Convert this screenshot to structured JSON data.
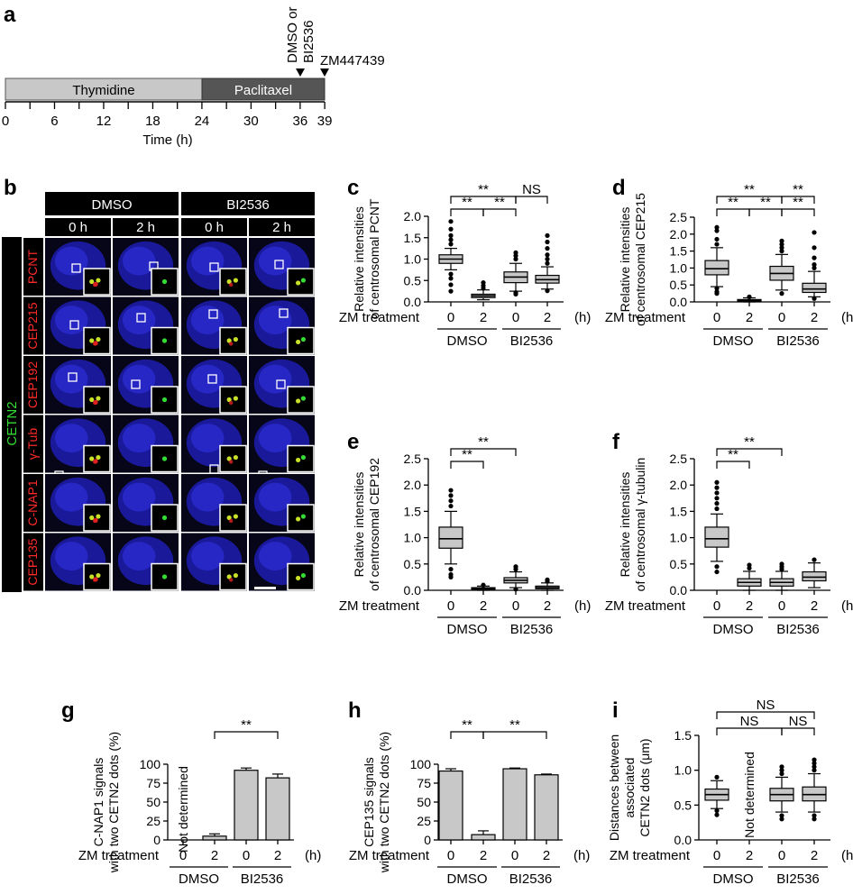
{
  "panel_letters": [
    "a",
    "b",
    "c",
    "d",
    "e",
    "f",
    "g",
    "h",
    "i"
  ],
  "timeline": {
    "bar1_label": "Thymidine",
    "bar2_label": "Paclitaxel",
    "ticks": [
      "0",
      "6",
      "12",
      "18",
      "24",
      "30",
      "36",
      "39"
    ],
    "tick_values": [
      0,
      6,
      12,
      18,
      24,
      30,
      36,
      39
    ],
    "xlabel": "Time (h)",
    "addition1": "DMSO or\nBI2536",
    "addition1_line1": "DMSO or",
    "addition1_line2": "BI2536",
    "addition2": "ZM447439",
    "colors": {
      "bar1": "#c8c8c8",
      "bar2": "#555555"
    }
  },
  "micro": {
    "groups": [
      "DMSO",
      "BI2536"
    ],
    "times": [
      "0 h",
      "2 h",
      "0 h",
      "2 h"
    ],
    "side_label": "CETN2",
    "rows": [
      "PCNT",
      "CEP215",
      "CEP192",
      "γ-Tub",
      "C-NAP1",
      "CEP135"
    ],
    "colors": {
      "nucleus": "#2323c8",
      "green": "#33dd33",
      "red": "#e02020",
      "label_red": "#ff2a2a"
    }
  },
  "common": {
    "xaxis_title": "ZM treatment",
    "x_unit": "(h)",
    "group_labels": [
      "DMSO",
      "BI2536"
    ],
    "x_ticks": [
      "0",
      "2",
      "0",
      "2"
    ]
  },
  "chart_data": [
    {
      "panel": "c",
      "type": "box",
      "ylabel1": "Relative intensities",
      "ylabel2": "of centrosomal PCNT",
      "ylim": [
        0,
        2.0
      ],
      "yticks": [
        "0.0",
        "0.5",
        "1.0",
        "1.5",
        "2.0"
      ],
      "ytick_values": [
        0,
        0.5,
        1.0,
        1.5,
        2.0
      ],
      "categories": [
        "0",
        "2",
        "0",
        "2"
      ],
      "boxes": [
        {
          "min": 0.75,
          "q1": 0.9,
          "median": 1.0,
          "q3": 1.1,
          "max": 1.25,
          "outliers": [
            0.25,
            0.4,
            0.55,
            0.65,
            1.35,
            1.45,
            1.55,
            1.7,
            1.88
          ]
        },
        {
          "min": 0.05,
          "q1": 0.1,
          "median": 0.14,
          "q3": 0.18,
          "max": 0.28,
          "outliers": [
            0.32,
            0.38,
            0.45
          ]
        },
        {
          "min": 0.25,
          "q1": 0.45,
          "median": 0.58,
          "q3": 0.7,
          "max": 0.9,
          "outliers": [
            0.18,
            0.22,
            1.0,
            1.08,
            1.15
          ]
        },
        {
          "min": 0.3,
          "q1": 0.44,
          "median": 0.52,
          "q3": 0.62,
          "max": 0.82,
          "outliers": [
            0.26,
            0.9,
            1.0,
            1.1,
            1.25,
            1.4,
            1.55
          ]
        }
      ],
      "sig": [
        {
          "a": 0,
          "b": 1,
          "label": "**",
          "level": 1
        },
        {
          "a": 1,
          "b": 2,
          "label": "**",
          "level": 1
        },
        {
          "a": 0,
          "b": 2,
          "label": "**",
          "level": 2
        },
        {
          "a": 2,
          "b": 3,
          "label": "NS",
          "level": 2
        }
      ]
    },
    {
      "panel": "d",
      "type": "box",
      "ylabel1": "Relative intensities",
      "ylabel2": "of centrosomal CEP215",
      "ylim": [
        0,
        2.5
      ],
      "yticks": [
        "0.0",
        "0.5",
        "1.0",
        "1.5",
        "2.0",
        "2.5"
      ],
      "ytick_values": [
        0,
        0.5,
        1.0,
        1.5,
        2.0,
        2.5
      ],
      "categories": [
        "0",
        "2",
        "0",
        "2"
      ],
      "boxes": [
        {
          "min": 0.45,
          "q1": 0.8,
          "median": 0.98,
          "q3": 1.22,
          "max": 1.6,
          "outliers": [
            0.25,
            0.3,
            0.4,
            1.7,
            1.85,
            2.1,
            2.2
          ]
        },
        {
          "min": 0.0,
          "q1": 0.02,
          "median": 0.04,
          "q3": 0.07,
          "max": 0.12,
          "outliers": [
            0.15
          ]
        },
        {
          "min": 0.35,
          "q1": 0.64,
          "median": 0.84,
          "q3": 1.05,
          "max": 1.4,
          "outliers": [
            0.25,
            1.5,
            1.6,
            1.7,
            1.8
          ]
        },
        {
          "min": 0.15,
          "q1": 0.28,
          "median": 0.38,
          "q3": 0.55,
          "max": 0.9,
          "outliers": [
            0.1,
            1.0,
            1.1,
            1.3,
            1.6,
            2.05
          ]
        }
      ],
      "sig": [
        {
          "a": 0,
          "b": 1,
          "label": "**",
          "level": 1
        },
        {
          "a": 1,
          "b": 2,
          "label": "**",
          "level": 1
        },
        {
          "a": 0,
          "b": 2,
          "label": "**",
          "level": 2
        },
        {
          "a": 2,
          "b": 3,
          "label": "**",
          "level": 2
        },
        {
          "a": 2,
          "b": 3,
          "label": "**",
          "level": 1
        }
      ]
    },
    {
      "panel": "e",
      "type": "box",
      "ylabel1": "Relative intensities",
      "ylabel2": "of centrosomal CEP192",
      "ylim": [
        0,
        2.5
      ],
      "yticks": [
        "0.0",
        "0.5",
        "1.0",
        "1.5",
        "2.0",
        "2.5"
      ],
      "ytick_values": [
        0,
        0.5,
        1.0,
        1.5,
        2.0,
        2.5
      ],
      "categories": [
        "0",
        "2",
        "0",
        "2"
      ],
      "boxes": [
        {
          "min": 0.5,
          "q1": 0.8,
          "median": 0.98,
          "q3": 1.2,
          "max": 1.5,
          "outliers": [
            0.25,
            0.3,
            0.4,
            1.6,
            1.7,
            1.8,
            1.9
          ]
        },
        {
          "min": 0.0,
          "q1": 0.02,
          "median": 0.03,
          "q3": 0.05,
          "max": 0.08,
          "outliers": [
            0.1
          ]
        },
        {
          "min": 0.05,
          "q1": 0.14,
          "median": 0.19,
          "q3": 0.24,
          "max": 0.35,
          "outliers": [
            0.02,
            0.4,
            0.45
          ]
        },
        {
          "min": 0.0,
          "q1": 0.03,
          "median": 0.05,
          "q3": 0.08,
          "max": 0.14,
          "outliers": [
            0.17,
            0.2
          ]
        }
      ],
      "sig": [
        {
          "a": 0,
          "b": 1,
          "label": "**",
          "level": 1
        },
        {
          "a": 0,
          "b": 2,
          "label": "**",
          "level": 2
        }
      ]
    },
    {
      "panel": "f",
      "type": "box",
      "ylabel1": "Relative intensities",
      "ylabel2": "of centrosomal γ-tubulin",
      "ylim": [
        0,
        2.5
      ],
      "yticks": [
        "0.0",
        "0.5",
        "1.0",
        "1.5",
        "2.0",
        "2.5"
      ],
      "ytick_values": [
        0,
        0.5,
        1.0,
        1.5,
        2.0,
        2.5
      ],
      "categories": [
        "0",
        "2",
        "0",
        "2"
      ],
      "boxes": [
        {
          "min": 0.55,
          "q1": 0.82,
          "median": 0.98,
          "q3": 1.2,
          "max": 1.45,
          "outliers": [
            0.35,
            0.45,
            1.55,
            1.65,
            1.75,
            1.85,
            1.95,
            2.05
          ]
        },
        {
          "min": 0.0,
          "q1": 0.08,
          "median": 0.15,
          "q3": 0.22,
          "max": 0.36,
          "outliers": [
            0.42,
            0.48
          ]
        },
        {
          "min": 0.0,
          "q1": 0.08,
          "median": 0.15,
          "q3": 0.22,
          "max": 0.36,
          "outliers": [
            0.4,
            0.45,
            0.5
          ]
        },
        {
          "min": 0.05,
          "q1": 0.18,
          "median": 0.25,
          "q3": 0.35,
          "max": 0.52,
          "outliers": [
            0.58
          ]
        }
      ],
      "sig": [
        {
          "a": 0,
          "b": 1,
          "label": "**",
          "level": 1
        },
        {
          "a": 0,
          "b": 2,
          "label": "**",
          "level": 2
        }
      ]
    },
    {
      "panel": "g",
      "type": "bar",
      "ylabel1": "C-NAP1 signals",
      "ylabel2": "with two CETN2 dots (%)",
      "ylim": [
        0,
        100
      ],
      "yticks": [
        "0",
        "25",
        "50",
        "75",
        "100"
      ],
      "ytick_values": [
        0,
        25,
        50,
        75,
        100
      ],
      "categories": [
        "0",
        "2",
        "0",
        "2"
      ],
      "values": [
        null,
        5,
        92,
        82
      ],
      "errors": [
        null,
        3,
        3,
        5
      ],
      "annotation": "Not determined",
      "sig": [
        {
          "a": 1,
          "b": 3,
          "label": "**",
          "level": 1
        }
      ]
    },
    {
      "panel": "h",
      "type": "bar",
      "ylabel1": "CEP135 signals",
      "ylabel2": "with two CETN2 dots (%)",
      "ylim": [
        0,
        100
      ],
      "yticks": [
        "0",
        "25",
        "50",
        "75",
        "100"
      ],
      "ytick_values": [
        0,
        25,
        50,
        75,
        100
      ],
      "categories": [
        "0",
        "2",
        "0",
        "2"
      ],
      "values": [
        91,
        7,
        94,
        86
      ],
      "errors": [
        3,
        5,
        1,
        1
      ],
      "sig": [
        {
          "a": 0,
          "b": 1,
          "label": "**",
          "level": 1
        },
        {
          "a": 1,
          "b": 3,
          "label": "**",
          "level": 1
        }
      ]
    },
    {
      "panel": "i",
      "type": "box",
      "ylabel1": "Distances between",
      "ylabel2": "associated",
      "ylabel3": "CETN2 dots (μm)",
      "ylim": [
        0,
        1.5
      ],
      "yticks": [
        "0.0",
        "0.5",
        "1.0",
        "1.5"
      ],
      "ytick_values": [
        0,
        0.5,
        1.0,
        1.5
      ],
      "categories": [
        "0",
        "2",
        "0",
        "2"
      ],
      "boxes": [
        {
          "min": 0.45,
          "q1": 0.57,
          "median": 0.65,
          "q3": 0.73,
          "max": 0.85,
          "outliers": [
            0.36,
            0.42,
            0.9
          ]
        },
        null,
        {
          "min": 0.4,
          "q1": 0.56,
          "median": 0.65,
          "q3": 0.74,
          "max": 0.9,
          "outliers": [
            0.3,
            0.35,
            0.95,
            1.0,
            1.05
          ]
        },
        {
          "min": 0.4,
          "q1": 0.56,
          "median": 0.65,
          "q3": 0.76,
          "max": 0.95,
          "outliers": [
            0.3,
            0.35,
            1.0,
            1.05,
            1.1,
            1.15
          ]
        }
      ],
      "annotation": "Not determined",
      "sig": [
        {
          "a": 0,
          "b": 2,
          "label": "NS",
          "level": 1
        },
        {
          "a": 2,
          "b": 3,
          "label": "NS",
          "level": 1
        },
        {
          "a": 0,
          "b": 3,
          "label": "NS",
          "level": 2
        }
      ]
    }
  ]
}
